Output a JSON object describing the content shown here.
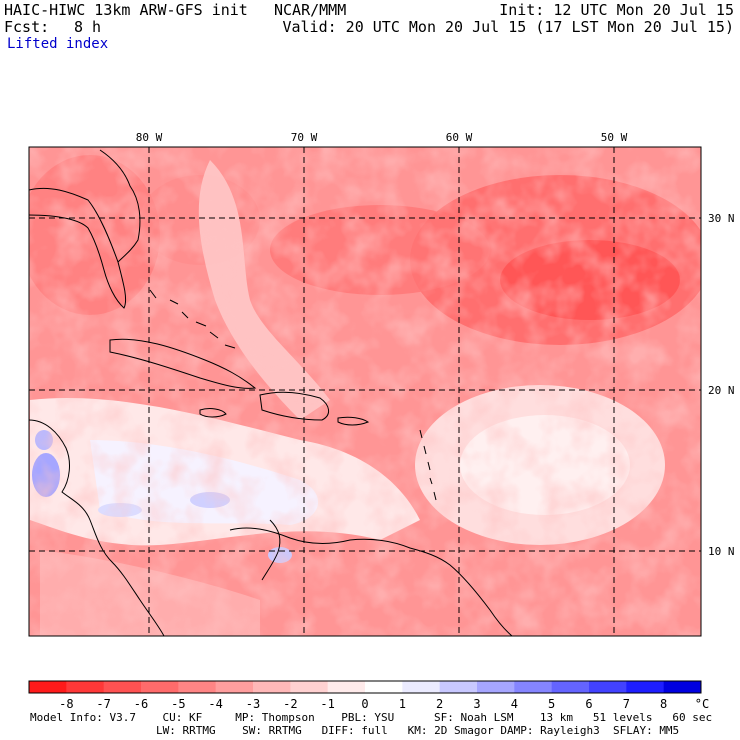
{
  "header": {
    "model": "HAIC-HIWC 13km ARW-GFS init",
    "org": "NCAR/MMM",
    "init": "Init: 12 UTC Mon 20 Jul 15",
    "fcst_label": "Fcst:",
    "fcst_value": "8 h",
    "valid": "Valid: 20 UTC Mon 20 Jul 15 (17 LST Mon 20 Jul 15)",
    "field": "Lifted index"
  },
  "map": {
    "lon_labels": [
      "80 W",
      "70 W",
      "60 W",
      "50 W"
    ],
    "lat_labels": [
      "30 N",
      "20 N",
      "10 N"
    ]
  },
  "colorbar": {
    "labels": [
      "-8",
      "-7",
      "-6",
      "-5",
      "-4",
      "-3",
      "-2",
      "-1",
      "0",
      "1",
      "2",
      "3",
      "4",
      "5",
      "6",
      "7",
      "8"
    ],
    "unit": "°C",
    "colors": [
      "#ff1a1a",
      "#ff3838",
      "#ff5252",
      "#ff6b6b",
      "#ff8585",
      "#ff9e9e",
      "#ffb8b8",
      "#ffd1d1",
      "#ffebeb",
      "#ffffff",
      "#ebebff",
      "#c8c8ff",
      "#a6a6ff",
      "#8585ff",
      "#6464ff",
      "#4242ff",
      "#1e1eff",
      "#0000e0"
    ]
  },
  "footer": {
    "line1": "Model Info: V3.7    CU: KF     MP: Thompson    PBL: YSU      SF: Noah LSM    13 km   51 levels   60 sec",
    "line2": "LW: RRTMG    SW: RRTMG   DIFF: full   KM: 2D Smagor DAMP: Rayleigh3  SFLAY: MM5"
  }
}
